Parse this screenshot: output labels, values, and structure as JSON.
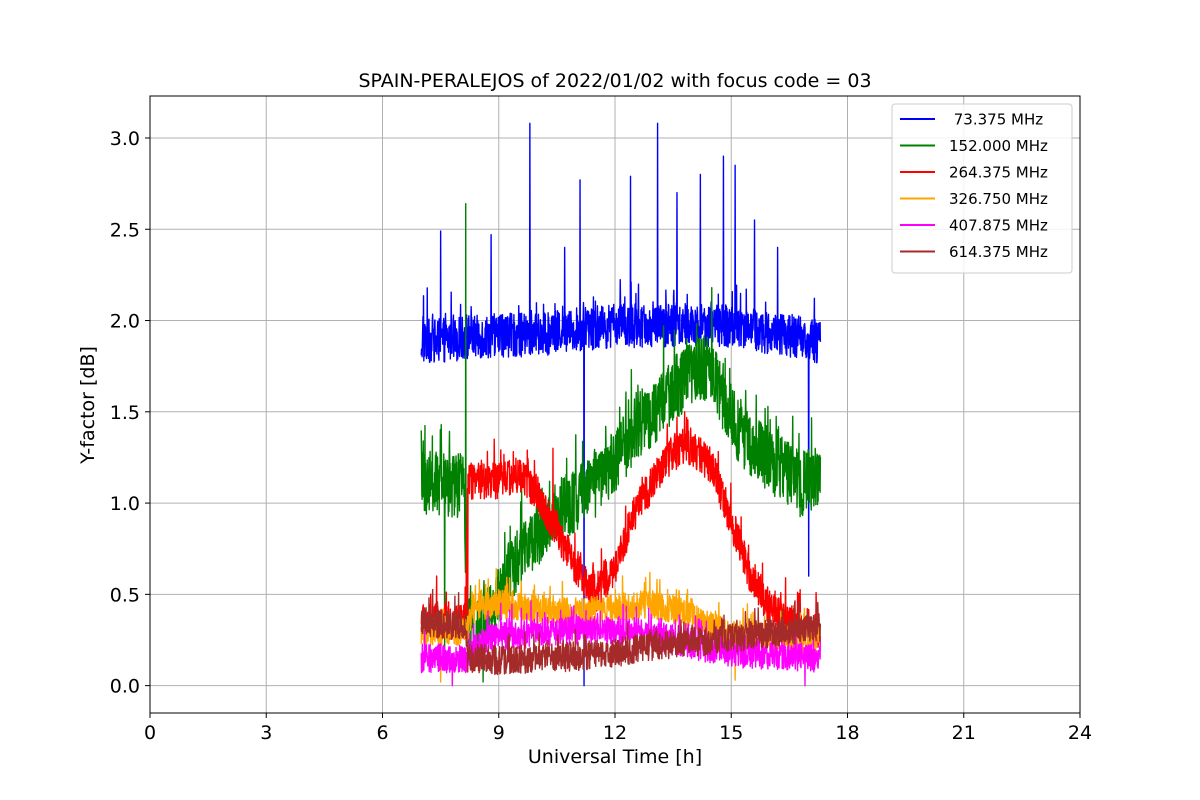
{
  "chart_data": {
    "type": "line",
    "title": "SPAIN-PERALEJOS of 2022/01/02 with focus code = 03",
    "xlabel": "Universal Time [h]",
    "ylabel": "Y-factor [dB]",
    "xlim": [
      0,
      24
    ],
    "ylim": [
      -0.15,
      3.23
    ],
    "xticks": [
      0,
      3,
      6,
      9,
      12,
      15,
      18,
      21,
      24
    ],
    "yticks": [
      0.0,
      0.5,
      1.0,
      1.5,
      2.0,
      2.5,
      3.0
    ],
    "xtick_labels": [
      "0",
      "3",
      "6",
      "9",
      "12",
      "15",
      "18",
      "21",
      "24"
    ],
    "ytick_labels": [
      "0.0",
      "0.5",
      "1.0",
      "1.5",
      "2.0",
      "2.5",
      "3.0"
    ],
    "grid": true,
    "legend_position": "top-right",
    "series": [
      {
        "name": " 73.375 MHz",
        "color": "#0000ff",
        "baseline": [
          [
            7.0,
            1.88
          ],
          [
            8.0,
            1.9
          ],
          [
            9.0,
            1.92
          ],
          [
            10.0,
            1.92
          ],
          [
            11.0,
            1.95
          ],
          [
            12.0,
            1.97
          ],
          [
            13.0,
            1.97
          ],
          [
            14.0,
            1.98
          ],
          [
            15.0,
            1.97
          ],
          [
            16.0,
            1.93
          ],
          [
            17.0,
            1.9
          ],
          [
            17.3,
            1.88
          ]
        ],
        "noise": 0.12,
        "spikes": [
          [
            7.5,
            2.49
          ],
          [
            8.8,
            2.47
          ],
          [
            9.8,
            3.08
          ],
          [
            10.7,
            2.4
          ],
          [
            11.1,
            2.77
          ],
          [
            11.2,
            0.0
          ],
          [
            12.4,
            2.79
          ],
          [
            13.1,
            3.08
          ],
          [
            13.6,
            2.7
          ],
          [
            14.2,
            2.8
          ],
          [
            14.8,
            2.9
          ],
          [
            15.1,
            2.85
          ],
          [
            15.6,
            2.55
          ],
          [
            16.2,
            2.4
          ],
          [
            17.0,
            0.6
          ]
        ]
      },
      {
        "name": "152.000 MHz",
        "color": "#008000",
        "baseline": [
          [
            7.0,
            1.1
          ],
          [
            8.1,
            1.1
          ],
          [
            8.2,
            0.3
          ],
          [
            8.9,
            0.42
          ],
          [
            9.2,
            0.6
          ],
          [
            9.6,
            0.72
          ],
          [
            10.1,
            0.85
          ],
          [
            10.5,
            0.95
          ],
          [
            11.0,
            1.02
          ],
          [
            11.5,
            1.1
          ],
          [
            12.0,
            1.22
          ],
          [
            12.5,
            1.4
          ],
          [
            13.0,
            1.5
          ],
          [
            13.5,
            1.62
          ],
          [
            14.0,
            1.72
          ],
          [
            14.5,
            1.75
          ],
          [
            14.8,
            1.55
          ],
          [
            15.2,
            1.4
          ],
          [
            15.6,
            1.3
          ],
          [
            16.2,
            1.2
          ],
          [
            16.8,
            1.1
          ],
          [
            17.3,
            1.15
          ]
        ],
        "noise": 0.18,
        "spikes": [
          [
            8.15,
            2.64
          ],
          [
            14.5,
            2.18
          ],
          [
            7.6,
            0.12
          ],
          [
            8.6,
            0.02
          ]
        ]
      },
      {
        "name": "264.375 MHz",
        "color": "#ff0000",
        "baseline": [
          [
            7.0,
            0.35
          ],
          [
            8.15,
            0.35
          ],
          [
            8.2,
            1.12
          ],
          [
            9.0,
            1.12
          ],
          [
            9.6,
            1.15
          ],
          [
            10.0,
            1.05
          ],
          [
            10.5,
            0.85
          ],
          [
            11.0,
            0.65
          ],
          [
            11.5,
            0.5
          ],
          [
            12.0,
            0.65
          ],
          [
            12.5,
            0.95
          ],
          [
            13.0,
            1.12
          ],
          [
            13.5,
            1.28
          ],
          [
            14.0,
            1.3
          ],
          [
            14.5,
            1.2
          ],
          [
            15.0,
            0.9
          ],
          [
            15.5,
            0.6
          ],
          [
            16.0,
            0.42
          ],
          [
            16.5,
            0.35
          ],
          [
            17.3,
            0.3
          ]
        ],
        "noise": 0.1,
        "spikes": [
          [
            7.4,
            0.6
          ],
          [
            10.4,
            1.3
          ],
          [
            13.8,
            1.5
          ],
          [
            8.2,
            0.25
          ]
        ]
      },
      {
        "name": "326.750 MHz",
        "color": "#ffa500",
        "baseline": [
          [
            7.0,
            0.3
          ],
          [
            8.2,
            0.3
          ],
          [
            8.3,
            0.42
          ],
          [
            9.0,
            0.45
          ],
          [
            10.0,
            0.42
          ],
          [
            11.0,
            0.4
          ],
          [
            12.0,
            0.42
          ],
          [
            12.8,
            0.45
          ],
          [
            13.5,
            0.42
          ],
          [
            14.2,
            0.35
          ],
          [
            15.0,
            0.28
          ],
          [
            16.0,
            0.26
          ],
          [
            17.3,
            0.25
          ]
        ],
        "noise": 0.08,
        "spikes": [
          [
            12.9,
            0.62
          ],
          [
            8.5,
            0.58
          ],
          [
            7.5,
            0.02
          ],
          [
            15.1,
            0.03
          ]
        ]
      },
      {
        "name": "407.875 MHz",
        "color": "#ff00ff",
        "baseline": [
          [
            7.0,
            0.15
          ],
          [
            8.2,
            0.15
          ],
          [
            8.5,
            0.25
          ],
          [
            9.5,
            0.28
          ],
          [
            10.5,
            0.3
          ],
          [
            11.5,
            0.3
          ],
          [
            12.5,
            0.3
          ],
          [
            13.5,
            0.25
          ],
          [
            14.5,
            0.2
          ],
          [
            15.5,
            0.17
          ],
          [
            16.5,
            0.16
          ],
          [
            17.3,
            0.15
          ]
        ],
        "noise": 0.08,
        "spikes": [
          [
            10.0,
            0.4
          ],
          [
            7.8,
            0.0
          ],
          [
            16.9,
            0.0
          ]
        ]
      },
      {
        "name": "614.375 MHz",
        "color": "#a52a2a",
        "baseline": [
          [
            7.0,
            0.35
          ],
          [
            8.15,
            0.32
          ],
          [
            8.2,
            0.15
          ],
          [
            9.0,
            0.14
          ],
          [
            10.0,
            0.15
          ],
          [
            11.0,
            0.16
          ],
          [
            12.0,
            0.18
          ],
          [
            13.0,
            0.22
          ],
          [
            14.0,
            0.24
          ],
          [
            15.0,
            0.26
          ],
          [
            16.0,
            0.29
          ],
          [
            17.3,
            0.32
          ]
        ],
        "noise": 0.08,
        "spikes": [
          [
            7.2,
            0.48
          ],
          [
            17.2,
            0.45
          ]
        ]
      }
    ]
  }
}
